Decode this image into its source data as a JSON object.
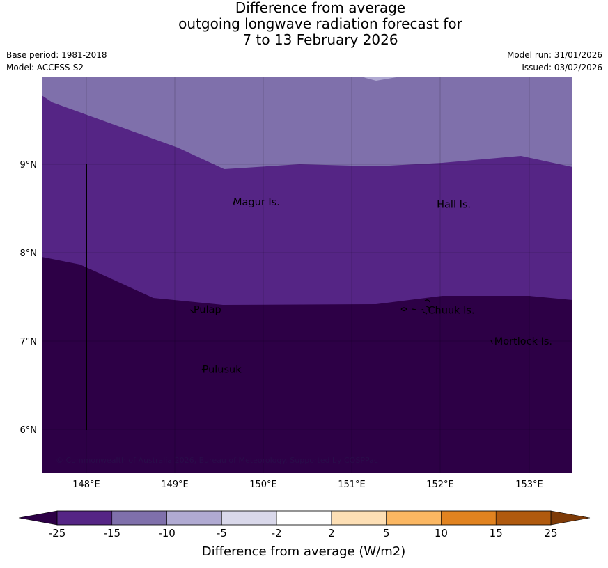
{
  "title": {
    "line1": "Difference from average",
    "line2": "outgoing longwave radiation forecast for",
    "line3": "7 to 13 February 2026"
  },
  "meta": {
    "base_period": "Base period: 1981-2018",
    "model": "Model: ACCESS-S2",
    "model_run": "Model run: 31/01/2026",
    "issued": "Issued: 03/02/2026"
  },
  "map": {
    "lon_range": [
      147.5,
      153.5
    ],
    "lat_range": [
      5.5,
      10.0
    ],
    "x_ticks": [
      "148°E",
      "149°E",
      "150°E",
      "151°E",
      "152°E",
      "153°E"
    ],
    "y_ticks": [
      "9°N",
      "8°N",
      "7°N",
      "6°N"
    ],
    "places": [
      {
        "name": "Magur Is.",
        "lon": 149.65,
        "lat": 8.58
      },
      {
        "name": "Hall Is.",
        "lon": 151.95,
        "lat": 8.55
      },
      {
        "name": "Pulap",
        "lon": 149.2,
        "lat": 7.36
      },
      {
        "name": "Chuuk Is.",
        "lon": 151.85,
        "lat": 7.35
      },
      {
        "name": "Mortlock Is.",
        "lon": 152.6,
        "lat": 7.0
      },
      {
        "name": "Pulusuk",
        "lon": 149.3,
        "lat": 6.68
      }
    ],
    "copyright": "© Commonwealth of Australia 2026, Bureau of Meteorology. Supported by COSPPac",
    "fill_colors": {
      "lt_-25": "#2d0046",
      "-25_-15": "#552585",
      "-15_-10": "#7f70ab",
      "-10_-5": "#b0aad2"
    }
  },
  "colorbar": {
    "title": "Difference from average (W/m2)",
    "labels": [
      "-25",
      "-15",
      "-10",
      "-5",
      "-2",
      "2",
      "5",
      "10",
      "15",
      "25"
    ],
    "colors": [
      "#552585",
      "#7f70ab",
      "#b0aad2",
      "#d9d8ea",
      "#ffffff",
      "#fddfb5",
      "#fbb762",
      "#e18320",
      "#b05a0f"
    ],
    "low_extend_color": "#2d0046",
    "high_extend_color": "#7e3b08"
  }
}
